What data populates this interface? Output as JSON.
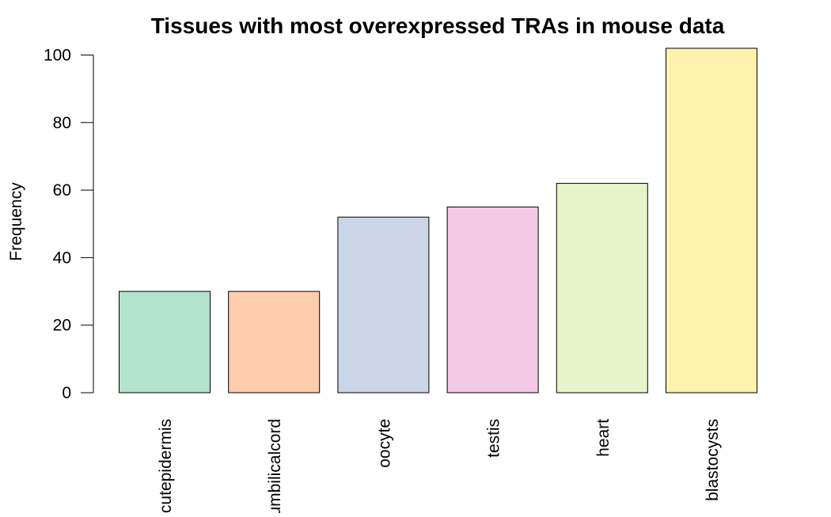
{
  "chart_data": {
    "type": "bar",
    "title": "Tissues with most overexpressed TRAs in mouse data",
    "xlabel": "",
    "ylabel": "Frequency",
    "categories": [
      "cutepidermis",
      "umbilicalcord",
      "oocyte",
      "testis",
      "heart",
      "blastocysts"
    ],
    "values": [
      30,
      30,
      52,
      55,
      62,
      102
    ],
    "colors": [
      "#b3e2cd",
      "#fdcdac",
      "#cbd5e8",
      "#f4cae4",
      "#e6f5c9",
      "#fff2ae"
    ],
    "ylim": [
      0,
      102
    ],
    "yticks": [
      0,
      20,
      40,
      60,
      80,
      100
    ],
    "grid": false,
    "legend": "none"
  }
}
